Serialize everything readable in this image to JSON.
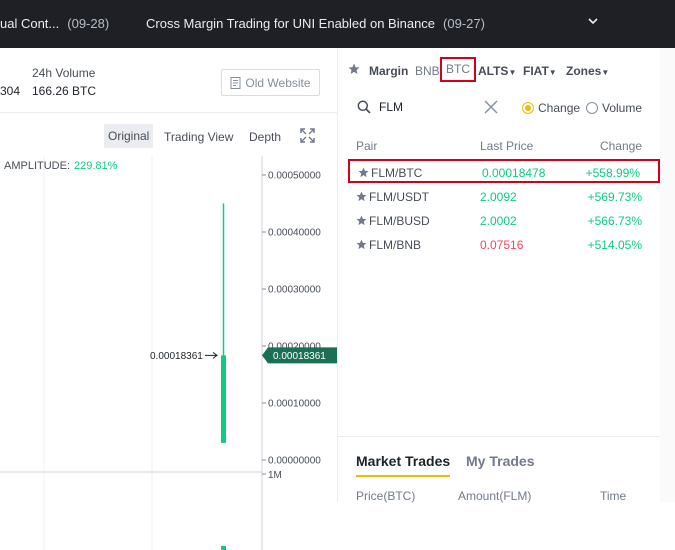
{
  "announcements": [
    {
      "text": "ual Cont...",
      "date": "(09-28)"
    },
    {
      "text": "Cross Margin Trading for UNI Enabled on Binance",
      "date": "(09-27)"
    }
  ],
  "stats": {
    "cut_value": "304",
    "volume_label": "24h Volume",
    "volume_value": "166.26 BTC"
  },
  "old_website_label": "Old Website",
  "chart_tabs": {
    "original": "Original",
    "trading_view": "Trading View",
    "depth": "Depth"
  },
  "chart": {
    "amplitude_label": "AMPLITUDE:",
    "amplitude_value": "229.81%",
    "y_ticks": [
      "0.00050000",
      "0.00040000",
      "0.00030000",
      "0.00020000",
      "0.00010000",
      "0.00000000"
    ],
    "volume_tick": "1M",
    "marker_label": "0.00018361",
    "price_tag": "0.00018361",
    "candle": {
      "open": 3e-05,
      "close": 0.00018361,
      "high": 0.00045,
      "low": 0.0
    },
    "up_color": "#0ecb81"
  },
  "market_tabs": {
    "margin": "Margin",
    "bnb": "BNB",
    "btc": "BTC",
    "alts": "ALTS",
    "fiat": "FIAT",
    "zones": "Zones"
  },
  "search": {
    "value": "FLM"
  },
  "sort": {
    "change": "Change",
    "volume": "Volume",
    "selected": "Change"
  },
  "columns": {
    "pair": "Pair",
    "last_price": "Last Price",
    "change": "Change"
  },
  "rows": [
    {
      "pair": "FLM/BTC",
      "price": "0.00018478",
      "change": "+558.99%",
      "price_dir": "up"
    },
    {
      "pair": "FLM/USDT",
      "price": "2.0092",
      "change": "+569.73%",
      "price_dir": "up"
    },
    {
      "pair": "FLM/BUSD",
      "price": "2.0002",
      "change": "+566.73%",
      "price_dir": "up"
    },
    {
      "pair": "FLM/BNB",
      "price": "0.07516",
      "change": "+514.05%",
      "price_dir": "down"
    }
  ],
  "trades": {
    "tab_market": "Market Trades",
    "tab_my": "My Trades",
    "col_price": "Price(BTC)",
    "col_amount": "Amount(FLM)",
    "col_time": "Time"
  },
  "colors": {
    "highlight_border": "#d0021b",
    "accent": "#f0b90b",
    "up": "#0ecb81",
    "down": "#f6465d"
  }
}
